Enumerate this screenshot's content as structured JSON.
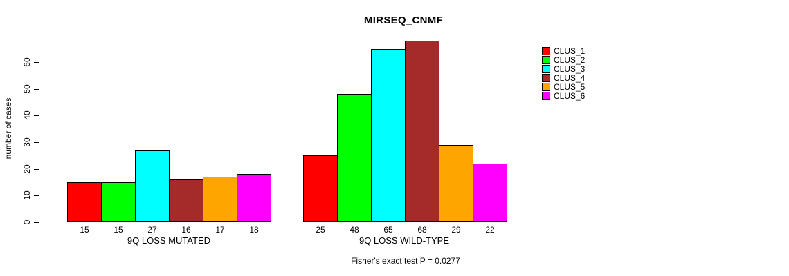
{
  "chart_data": {
    "type": "bar",
    "title": "MIRSEQ_CNMF",
    "ylabel": "number of cases",
    "xlabel": "",
    "annotation": "Fisher's exact test P = 0.0277",
    "categories": [
      "9Q LOSS MUTATED",
      "9Q LOSS WILD-TYPE"
    ],
    "series": [
      {
        "name": "CLUS_1",
        "color": "#ff0000",
        "values": [
          15,
          25
        ]
      },
      {
        "name": "CLUS_2",
        "color": "#00ff00",
        "values": [
          15,
          48
        ]
      },
      {
        "name": "CLUS_3",
        "color": "#00ffff",
        "values": [
          27,
          65
        ]
      },
      {
        "name": "CLUS_4",
        "color": "#a52a2a",
        "values": [
          16,
          68
        ]
      },
      {
        "name": "CLUS_5",
        "color": "#ffa500",
        "values": [
          17,
          29
        ]
      },
      {
        "name": "CLUS_6",
        "color": "#ff00ff",
        "values": [
          18,
          22
        ]
      }
    ],
    "y_ticks": [
      0,
      10,
      20,
      30,
      40,
      50,
      60
    ],
    "ylim": [
      0,
      70
    ],
    "grid": false,
    "legend_position": "right",
    "value_labels_under_bars": true
  }
}
